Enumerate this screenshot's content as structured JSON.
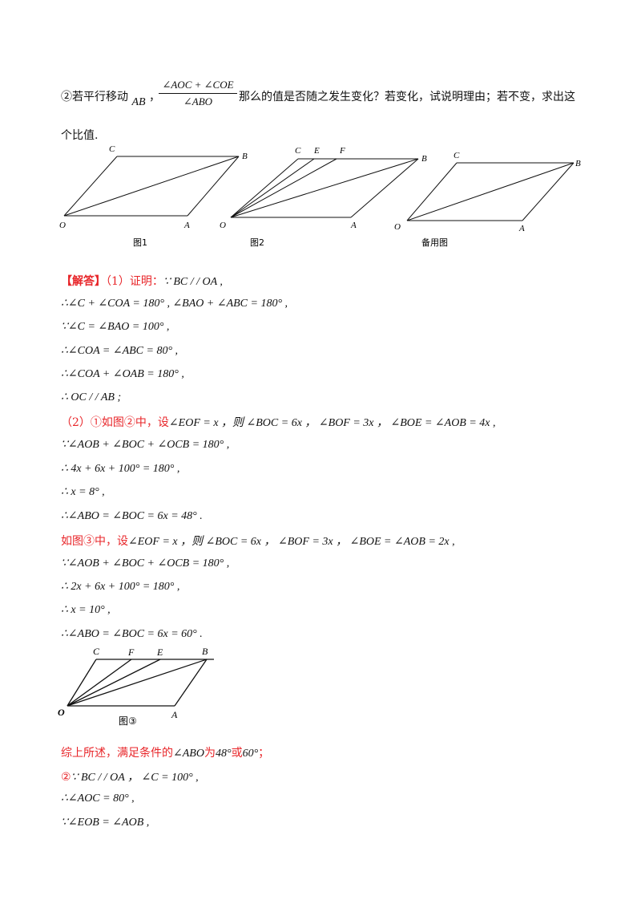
{
  "question": {
    "prefix": "②若平行移动",
    "ab": "AB",
    "comma": "，",
    "frac_num": "∠AOC + ∠COE",
    "frac_den": "∠ABO",
    "suffix": "那么的值是否随之发生变化？若变化，试说明理由；若不变，求出这",
    "line2": "个比值."
  },
  "figures": {
    "fig1": {
      "caption": "图1",
      "labels": {
        "C": "C",
        "B": "B",
        "O": "O",
        "A": "A"
      }
    },
    "fig2": {
      "caption": "图2",
      "labels": {
        "C": "C",
        "E": "E",
        "F": "F",
        "B": "B",
        "O": "O",
        "A": "A"
      }
    },
    "fig_spare": {
      "caption": "备用图",
      "labels": {
        "C": "C",
        "B": "B",
        "O": "O",
        "A": "A"
      }
    },
    "fig3": {
      "caption": "图③",
      "labels": {
        "C": "C",
        "F": "F",
        "E": "E",
        "B": "B",
        "O": "O",
        "A": "A"
      }
    }
  },
  "solution": {
    "tag": "【解答】",
    "p1_lead": "（1）证明：",
    "l1": "∵ BC / / OA ,",
    "l2": "∴∠C + ∠COA = 180° ,  ∠BAO + ∠ABC = 180° ,",
    "l3": "∵∠C = ∠BAO = 100° ,",
    "l4": "∴∠COA = ∠ABC = 80° ,",
    "l5": "∴∠COA + ∠OAB = 180° ,",
    "l6": "∴ OC / / AB ;",
    "l7_lead": "（2）①如图②中，设",
    "l7_rest": "∠EOF = x ，则 ∠BOC = 6x ， ∠BOF = 3x ， ∠BOE = ∠AOB = 4x ,",
    "l8": "∵∠AOB + ∠BOC + ∠OCB = 180° ,",
    "l9": "∴ 4x + 6x + 100° = 180° ,",
    "l10": "∴ x = 8° ,",
    "l11": "∴∠ABO = ∠BOC = 6x = 48° .",
    "l12_lead": "如图③中，设",
    "l12_rest": "∠EOF = x ，则 ∠BOC = 6x ， ∠BOF = 3x ， ∠BOE = ∠AOB = 2x ,",
    "l13": "∵∠AOB + ∠BOC + ∠OCB = 180° ,",
    "l14": "∴ 2x + 6x + 100° = 180° ,",
    "l15": "∴ x = 10° ,",
    "l16": "∴∠ABO = ∠BOC = 6x = 60° .",
    "l17_a": "综上所述，满足条件的",
    "l17_b": "∠ABO",
    "l17_c": "为",
    "l17_d": "48°",
    "l17_e": "或",
    "l17_f": "60°",
    "l17_g": "；",
    "l18_lead": "②",
    "l18_rest": "∵ BC / / OA ， ∠C = 100° ,",
    "l19": "∴∠AOC = 80° ,",
    "l20": "∵∠EOB = ∠AOB ,"
  }
}
